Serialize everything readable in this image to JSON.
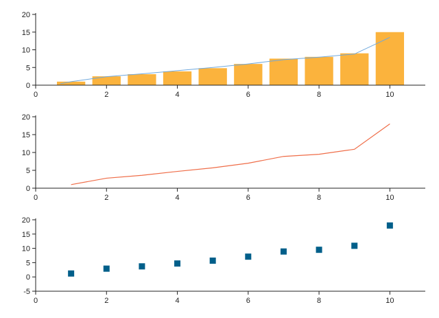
{
  "chart_data": [
    {
      "type": "bar",
      "x": [
        1,
        2,
        3,
        4,
        5,
        6,
        7,
        8,
        9,
        10
      ],
      "values": [
        1.0,
        2.5,
        3.1,
        3.9,
        4.8,
        6.0,
        7.5,
        8.0,
        9.0,
        15.0
      ],
      "overlay_line": [
        {
          "x": 0.7,
          "y": 0.4
        },
        {
          "x": 1,
          "y": 1.0
        },
        {
          "x": 2,
          "y": 2.4
        },
        {
          "x": 3,
          "y": 3.2
        },
        {
          "x": 4,
          "y": 4.1
        },
        {
          "x": 5,
          "y": 5.0
        },
        {
          "x": 6,
          "y": 6.0
        },
        {
          "x": 7,
          "y": 7.2
        },
        {
          "x": 8,
          "y": 7.9
        },
        {
          "x": 9,
          "y": 8.8
        },
        {
          "x": 10,
          "y": 13.5
        }
      ],
      "xlim": [
        0,
        11
      ],
      "ylim": [
        0,
        20
      ],
      "xticks": [
        0,
        2,
        4,
        6,
        8,
        10
      ],
      "yticks": [
        0,
        5,
        10,
        15,
        20
      ],
      "bar_color": "#fbb33d",
      "line_color": "#6fa8dc",
      "grid": false
    },
    {
      "type": "line",
      "x": [
        1,
        2,
        3,
        4,
        5,
        6,
        7,
        8,
        9,
        10
      ],
      "values": [
        1.0,
        2.8,
        3.6,
        4.7,
        5.7,
        7.0,
        8.9,
        9.5,
        10.9,
        18.0
      ],
      "xlim": [
        0,
        11
      ],
      "ylim": [
        0,
        20
      ],
      "xticks": [
        0,
        2,
        4,
        6,
        8,
        10
      ],
      "yticks": [
        0,
        5,
        10,
        15,
        20
      ],
      "line_color": "#ef6c47",
      "grid": false
    },
    {
      "type": "scatter",
      "x": [
        1,
        2,
        3,
        4,
        5,
        6,
        7,
        8,
        9,
        10
      ],
      "values": [
        1.2,
        2.9,
        3.7,
        4.7,
        5.7,
        7.1,
        8.9,
        9.5,
        10.9,
        18.0
      ],
      "xlim": [
        0,
        11
      ],
      "ylim": [
        -5,
        20
      ],
      "xticks": [
        0,
        2,
        4,
        6,
        8,
        10
      ],
      "yticks": [
        -5,
        0,
        5,
        10,
        15,
        20
      ],
      "marker_color": "#005f8a",
      "marker": "square",
      "grid": false
    }
  ]
}
